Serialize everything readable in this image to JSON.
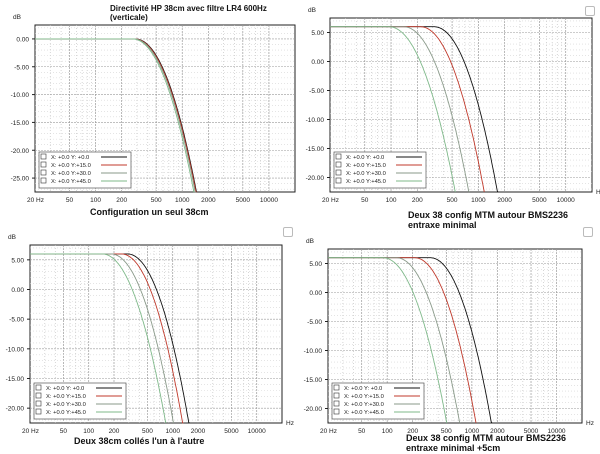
{
  "chart_data": [
    {
      "type": "line",
      "title": "Directivité HP 38cm avec filtre LR4 600Hz",
      "subtitle": "(verticale)",
      "caption": "Configuration un seul 38cm",
      "y_unit": "dB",
      "x_unit": "",
      "x_scale": "log",
      "xlim": [
        20,
        20000
      ],
      "ylim": [
        -27.5,
        2.5
      ],
      "y_ticks": [
        "0.00",
        "-5.00",
        "-10.00",
        "-15.00",
        "-20.00",
        "-25.00"
      ],
      "y_tick_values": [
        0,
        -5,
        -10,
        -15,
        -20,
        -25
      ],
      "x_ticks": [
        "20 Hz",
        "50",
        "100",
        "200",
        "500",
        "1000",
        "2000",
        "5000",
        "10000"
      ],
      "x_tick_values": [
        20,
        50,
        100,
        200,
        500,
        1000,
        2000,
        5000,
        10000
      ],
      "legend_position": "bottom-left",
      "series": [
        {
          "label": "X:  +0.0   Y:  +0.0",
          "color": "#111111",
          "level": 0,
          "rolloff_hz": 515,
          "end_hz": 1500
        },
        {
          "label": "X:  +0.0   Y:+15.0",
          "color": "#c0392b",
          "level": 0,
          "rolloff_hz": 505,
          "end_hz": 1480
        },
        {
          "label": "X:  +0.0   Y:+30.0",
          "color": "#8a9a8a",
          "level": 0,
          "rolloff_hz": 495,
          "end_hz": 1450
        },
        {
          "label": "X:  +0.0   Y:+45.0",
          "color": "#7fb98a",
          "level": 0,
          "rolloff_hz": 480,
          "end_hz": 1400
        }
      ]
    },
    {
      "type": "line",
      "title": "",
      "subtitle": "",
      "caption": "Deux 38 config MTM autour BMS2236",
      "caption2": "entraxe minimal",
      "y_unit": "dB",
      "x_unit": "Hz",
      "x_scale": "log",
      "xlim": [
        20,
        20000
      ],
      "ylim": [
        -22.5,
        7.5
      ],
      "y_ticks": [
        "5.00",
        "0.00",
        "-5.00",
        "-10.00",
        "-15.00",
        "-20.00"
      ],
      "y_tick_values": [
        5,
        0,
        -5,
        -10,
        -15,
        -20
      ],
      "x_ticks": [
        "20 Hz",
        "50",
        "100",
        "200",
        "500",
        "1000",
        "2000",
        "5000",
        "10000"
      ],
      "x_tick_values": [
        20,
        50,
        100,
        200,
        500,
        1000,
        2000,
        5000,
        10000
      ],
      "legend_position": "bottom-left",
      "series": [
        {
          "label": "X:  +0.0   Y:  +0.0",
          "color": "#111111",
          "level": 6,
          "rolloff_hz": 560,
          "end_hz": 1700
        },
        {
          "label": "X:  +0.0   Y:+15.0",
          "color": "#c0392b",
          "level": 6,
          "rolloff_hz": 390,
          "end_hz": 1200
        },
        {
          "label": "X:  +0.0   Y:+30.0",
          "color": "#8a9a8a",
          "level": 6,
          "rolloff_hz": 250,
          "end_hz": 800
        },
        {
          "label": "X:  +0.0   Y:+45.0",
          "color": "#7fb98a",
          "level": 6,
          "rolloff_hz": 170,
          "end_hz": 560
        }
      ]
    },
    {
      "type": "line",
      "title": "",
      "subtitle": "",
      "caption": "Deux 38cm collés l'un à l'autre",
      "y_unit": "dB",
      "x_unit": "Hz",
      "x_scale": "log",
      "xlim": [
        20,
        20000
      ],
      "ylim": [
        -22.5,
        7.5
      ],
      "y_ticks": [
        "5.00",
        "0.00",
        "-5.00",
        "-10.00",
        "-15.00",
        "-20.00"
      ],
      "y_tick_values": [
        5,
        0,
        -5,
        -10,
        -15,
        -20
      ],
      "x_ticks": [
        "20 Hz",
        "50",
        "100",
        "200",
        "500",
        "1000",
        "2000",
        "5000",
        "10000"
      ],
      "x_tick_values": [
        20,
        50,
        100,
        200,
        500,
        1000,
        2000,
        5000,
        10000
      ],
      "legend_position": "bottom-left",
      "series": [
        {
          "label": "X:  +0.0   Y:  +0.0",
          "color": "#111111",
          "level": 6,
          "rolloff_hz": 520,
          "end_hz": 1600
        },
        {
          "label": "X:  +0.0   Y:+15.0",
          "color": "#c0392b",
          "level": 6,
          "rolloff_hz": 440,
          "end_hz": 1350
        },
        {
          "label": "X:  +0.0   Y:+30.0",
          "color": "#8a9a8a",
          "level": 6,
          "rolloff_hz": 330,
          "end_hz": 1050
        },
        {
          "label": "X:  +0.0   Y:+45.0",
          "color": "#7fb98a",
          "level": 6,
          "rolloff_hz": 260,
          "end_hz": 850
        }
      ]
    },
    {
      "type": "line",
      "title": "",
      "subtitle": "",
      "caption": "Deux 38 config MTM autour  BMS2236",
      "caption2": "entraxe minimal +5cm",
      "y_unit": "dB",
      "x_unit": "Hz",
      "x_scale": "log",
      "xlim": [
        20,
        20000
      ],
      "ylim": [
        -22.5,
        7.5
      ],
      "y_ticks": [
        "5.00",
        "0.00",
        "-5.00",
        "-10.00",
        "-15.00",
        "-20.00"
      ],
      "y_tick_values": [
        5,
        0,
        -5,
        -10,
        -15,
        -20
      ],
      "x_ticks": [
        "20 Hz",
        "50",
        "100",
        "200",
        "500",
        "1000",
        "2000",
        "5000",
        "10000"
      ],
      "x_tick_values": [
        20,
        50,
        100,
        200,
        500,
        1000,
        2000,
        5000,
        10000
      ],
      "legend_position": "bottom-left",
      "series": [
        {
          "label": "X:  +0.0   Y:  +0.0",
          "color": "#111111",
          "level": 6,
          "rolloff_hz": 580,
          "end_hz": 1750
        },
        {
          "label": "X:  +0.0   Y:+15.0",
          "color": "#c0392b",
          "level": 6,
          "rolloff_hz": 380,
          "end_hz": 1150
        },
        {
          "label": "X:  +0.0   Y:+30.0",
          "color": "#8a9a8a",
          "level": 6,
          "rolloff_hz": 230,
          "end_hz": 740
        },
        {
          "label": "X:  +0.0   Y:+45.0",
          "color": "#7fb98a",
          "level": 6,
          "rolloff_hz": 160,
          "end_hz": 520
        }
      ]
    }
  ]
}
